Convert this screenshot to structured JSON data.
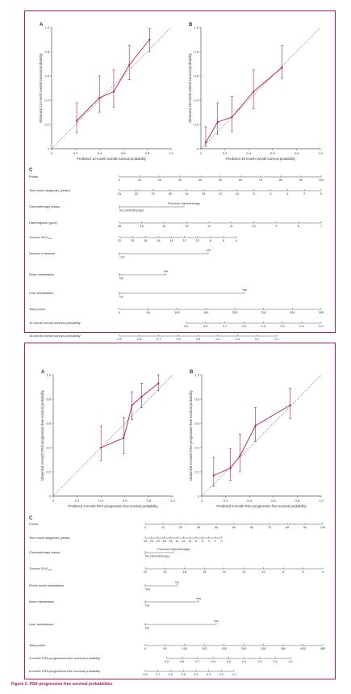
{
  "accent": "#b01c5c",
  "figure_caption": "Figure 1: PSA-progression-free survival probabilities",
  "upper": {
    "panel_a": {
      "letter": "A",
      "xlabel": "Predicted 12-month overall survival probability",
      "ylabel": "Observed 12-month overall survival probability",
      "ticks": [
        "0",
        "0.2",
        "0.4",
        "0.6",
        "0.8",
        "1.0"
      ]
    },
    "panel_b": {
      "letter": "B",
      "xlabel": "Predicted 18-month overall survival probability",
      "ylabel": "Observed 18-month overall survival probability",
      "ticks": [
        "0",
        "0.2",
        "0.4",
        "0.6",
        "0.8",
        "1.0"
      ]
    },
    "nomogram": {
      "letter": "C",
      "rows": [
        {
          "label": "Points",
          "ticks": [
            "0",
            "10",
            "20",
            "30",
            "40",
            "50",
            "60",
            "70",
            "80",
            "90",
            "100"
          ],
          "x0": 0,
          "x1": 100
        },
        {
          "label": "Time since diagnosis (years)",
          "ticks": [
            "24",
            "22",
            "20",
            "18",
            "16",
            "14",
            "12",
            "10",
            "8",
            "6",
            "4",
            "2",
            "0"
          ],
          "x0": 0,
          "x1": 100
        },
        {
          "label": "Chemotherapy status",
          "top": "Previous chemotherapy",
          "bottom": "No chemotherapy",
          "x0": 0,
          "x1": 32
        },
        {
          "label": "Haemoglobin (g/dL)",
          "ticks": [
            "16",
            "15",
            "14",
            "13",
            "12",
            "11",
            "10",
            "9",
            "8",
            "7"
          ],
          "x0": 0,
          "x1": 100
        },
        {
          "label": "Tumour SUV",
          "sub": "max",
          "ticks": [
            "22",
            "20",
            "18",
            "16",
            "14",
            "12",
            "10",
            "8",
            "6",
            "4"
          ],
          "x0": 0,
          "x1": 58
        },
        {
          "label": "Number of lesions",
          "top": ">20",
          "bottom": "<20",
          "x0": 0,
          "x1": 44
        },
        {
          "label": "Bone metastases",
          "top": "Yes",
          "bottom": "No",
          "x0": 0,
          "x1": 23
        },
        {
          "label": "Liver metastases",
          "top": "Yes",
          "bottom": "No",
          "x0": 0,
          "x1": 62
        },
        {
          "label": "Total points",
          "ticks": [
            "0",
            "50",
            "100",
            "150",
            "200",
            "250",
            "300",
            "350"
          ],
          "x0": 0,
          "x1": 100
        },
        {
          "label": "12-month overall survival probability",
          "ticks": [
            "0.9",
            "0.8",
            "0.7",
            "0.6",
            "0.5",
            "0.4",
            "0.3",
            "0.2"
          ],
          "x0": 33,
          "x1": 100
        },
        {
          "label": "18-month overall survival probability",
          "ticks": [
            "0.9",
            "0.8",
            "0.7",
            "0.6",
            "0.5",
            "0.4",
            "0.3",
            "0.2",
            "0.1"
          ],
          "x0": 0,
          "x1": 78
        }
      ]
    }
  },
  "lower": {
    "panel_a": {
      "letter": "A",
      "xlabel": "Predicted 3-month PSA-progression-free survival probability",
      "ylabel": "Observed 3-month PSA-progression-free survival probability",
      "ticks": [
        "0",
        "0.2",
        "0.4",
        "0.6",
        "0.8",
        "1.0"
      ]
    },
    "panel_b": {
      "letter": "B",
      "xlabel": "Predicted 6-month PSA-progression-free survival probability",
      "ylabel": "Observed 6-month PSA-progression-free survival probability",
      "ticks": [
        "0",
        "0.2",
        "0.4",
        "0.6",
        "0.8",
        "1.0"
      ]
    },
    "nomogram": {
      "letter": "C",
      "rows": [
        {
          "label": "Points",
          "ticks": [
            "0",
            "10",
            "20",
            "30",
            "40",
            "50",
            "60",
            "70",
            "80",
            "90",
            "100"
          ],
          "x0": 0,
          "x1": 100
        },
        {
          "label": "Time since diagnosis (years)",
          "ticks": [
            "24",
            "22",
            "20",
            "18",
            "16",
            "14",
            "12",
            "10",
            "8",
            "6",
            "4",
            "2",
            "0"
          ],
          "x0": 0,
          "x1": 43
        },
        {
          "label": "Chemotherapy status",
          "top": "Previous chemotherapy",
          "bottom": "No chemotherapy",
          "x0": 0,
          "x1": 16
        },
        {
          "label": "Tumour SUV",
          "sub": "max",
          "ticks": [
            "22",
            "20",
            "18",
            "16",
            "14",
            "12",
            "10",
            "8",
            "6",
            "4"
          ],
          "x0": 0,
          "x1": 100
        },
        {
          "label": "Pelvic nodal metastases",
          "top": "No",
          "bottom": "Yes",
          "x0": 0,
          "x1": 18
        },
        {
          "label": "Bone metastases",
          "top": "Yes",
          "bottom": "No",
          "x0": 0,
          "x1": 30
        },
        {
          "label": "Liver metastases",
          "top": "Yes",
          "bottom": "No",
          "x0": 0,
          "x1": 40
        },
        {
          "label": "Total points",
          "ticks": [
            "0",
            "50",
            "100",
            "150",
            "200",
            "250",
            "300",
            "350",
            "400",
            "450"
          ],
          "x0": 0,
          "x1": 100
        },
        {
          "label": "3-month PSA-progression-free survival probability",
          "ticks": [
            "0.9",
            "0.8",
            "0.7",
            "0.6",
            "0.5",
            "0.4",
            "0.3",
            "0.2",
            "0.1"
          ],
          "x0": 12,
          "x1": 82
        },
        {
          "label": "6-month PSA-progression-free survival probability",
          "ticks": [
            "0.8",
            "0.7",
            "0.6",
            "0.5",
            "0.4",
            "0.3",
            "0.2",
            "0.1"
          ],
          "x0": 0,
          "x1": 50
        }
      ]
    }
  },
  "chart_data": [
    {
      "type": "line",
      "panel": "upper-A",
      "xlabel": "Predicted 12-month overall survival probability",
      "ylabel": "Observed 12-month overall survival probability",
      "xlim": [
        0,
        1
      ],
      "ylim": [
        0,
        1
      ],
      "reference_line": "diagonal",
      "points": [
        {
          "x": 0.21,
          "y": 0.23,
          "lo": 0.13,
          "hi": 0.38
        },
        {
          "x": 0.4,
          "y": 0.42,
          "lo": 0.3,
          "hi": 0.6
        },
        {
          "x": 0.52,
          "y": 0.47,
          "lo": 0.34,
          "hi": 0.65
        },
        {
          "x": 0.65,
          "y": 0.69,
          "lo": 0.57,
          "hi": 0.85
        },
        {
          "x": 0.82,
          "y": 0.9,
          "lo": 0.8,
          "hi": 0.99
        }
      ]
    },
    {
      "type": "line",
      "panel": "upper-B",
      "xlabel": "Predicted 18-month overall survival probability",
      "ylabel": "Observed 18-month overall survival probability",
      "xlim": [
        0,
        1
      ],
      "ylim": [
        0,
        1
      ],
      "reference_line": "diagonal",
      "points": [
        {
          "x": 0.04,
          "y": 0.05,
          "lo": 0.02,
          "hi": 0.18
        },
        {
          "x": 0.14,
          "y": 0.22,
          "lo": 0.12,
          "hi": 0.38
        },
        {
          "x": 0.26,
          "y": 0.26,
          "lo": 0.14,
          "hi": 0.43
        },
        {
          "x": 0.44,
          "y": 0.47,
          "lo": 0.33,
          "hi": 0.65
        },
        {
          "x": 0.68,
          "y": 0.67,
          "lo": 0.58,
          "hi": 0.85
        }
      ]
    },
    {
      "type": "line",
      "panel": "lower-A",
      "xlabel": "Predicted 3-month PSA-progression-free survival probability",
      "ylabel": "Observed 3-month PSA-progression-free survival probability",
      "xlim": [
        0,
        1
      ],
      "ylim": [
        0,
        1
      ],
      "reference_line": "diagonal",
      "points": [
        {
          "x": 0.4,
          "y": 0.4,
          "lo": 0.29,
          "hi": 0.58
        },
        {
          "x": 0.59,
          "y": 0.48,
          "lo": 0.35,
          "hi": 0.65
        },
        {
          "x": 0.66,
          "y": 0.75,
          "lo": 0.63,
          "hi": 0.86
        },
        {
          "x": 0.74,
          "y": 0.82,
          "lo": 0.73,
          "hi": 0.93
        },
        {
          "x": 0.88,
          "y": 0.93,
          "lo": 0.87,
          "hi": 1.0
        }
      ]
    },
    {
      "type": "line",
      "panel": "lower-B",
      "xlabel": "Predicted 6-month PSA-progression-free survival probability",
      "ylabel": "Observed 6-month PSA-progression-free survival probability",
      "xlim": [
        0,
        1
      ],
      "ylim": [
        0,
        1
      ],
      "reference_line": "diagonal",
      "points": [
        {
          "x": 0.1,
          "y": 0.17,
          "lo": 0.08,
          "hi": 0.32
        },
        {
          "x": 0.24,
          "y": 0.23,
          "lo": 0.13,
          "hi": 0.39
        },
        {
          "x": 0.32,
          "y": 0.33,
          "lo": 0.2,
          "hi": 0.51
        },
        {
          "x": 0.45,
          "y": 0.58,
          "lo": 0.45,
          "hi": 0.73
        },
        {
          "x": 0.74,
          "y": 0.75,
          "lo": 0.64,
          "hi": 0.89
        }
      ]
    }
  ]
}
